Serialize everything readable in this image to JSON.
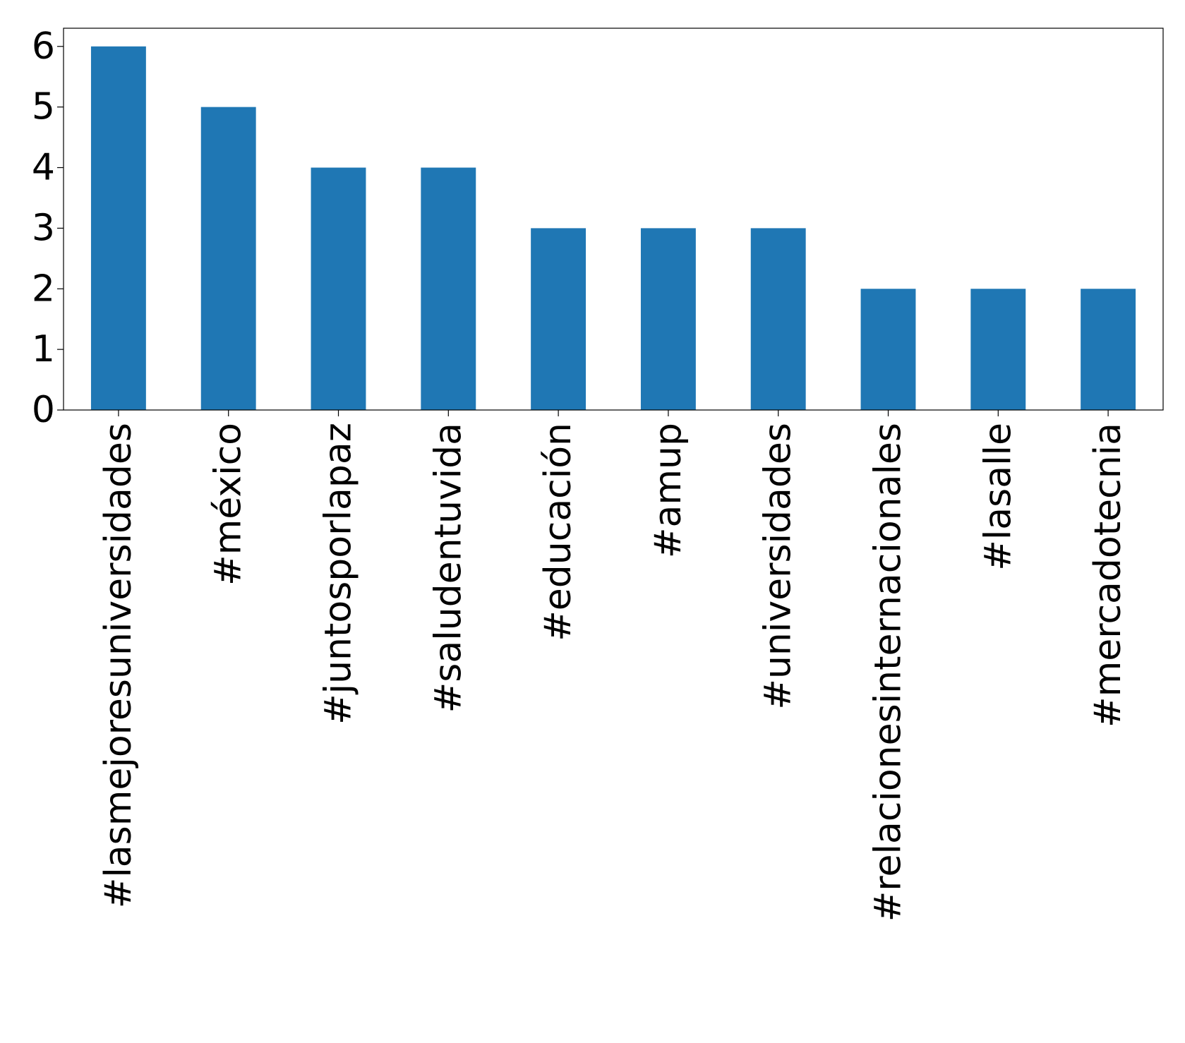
{
  "chart_data": {
    "type": "bar",
    "categories": [
      "#lasmejoresuniversidades",
      "#méxico",
      "#juntosporlapaz",
      "#saludentuvida",
      "#educación",
      "#amup",
      "#universidades",
      "#relacionesinternacionales",
      "#lasalle",
      "#mercadotecnia"
    ],
    "values": [
      6,
      5,
      4,
      4,
      3,
      3,
      3,
      2,
      2,
      2
    ],
    "color": "#1f77b4",
    "ylim": [
      0,
      6.3
    ],
    "yticks": [
      0,
      1,
      2,
      3,
      4,
      5,
      6
    ],
    "grid": false
  }
}
